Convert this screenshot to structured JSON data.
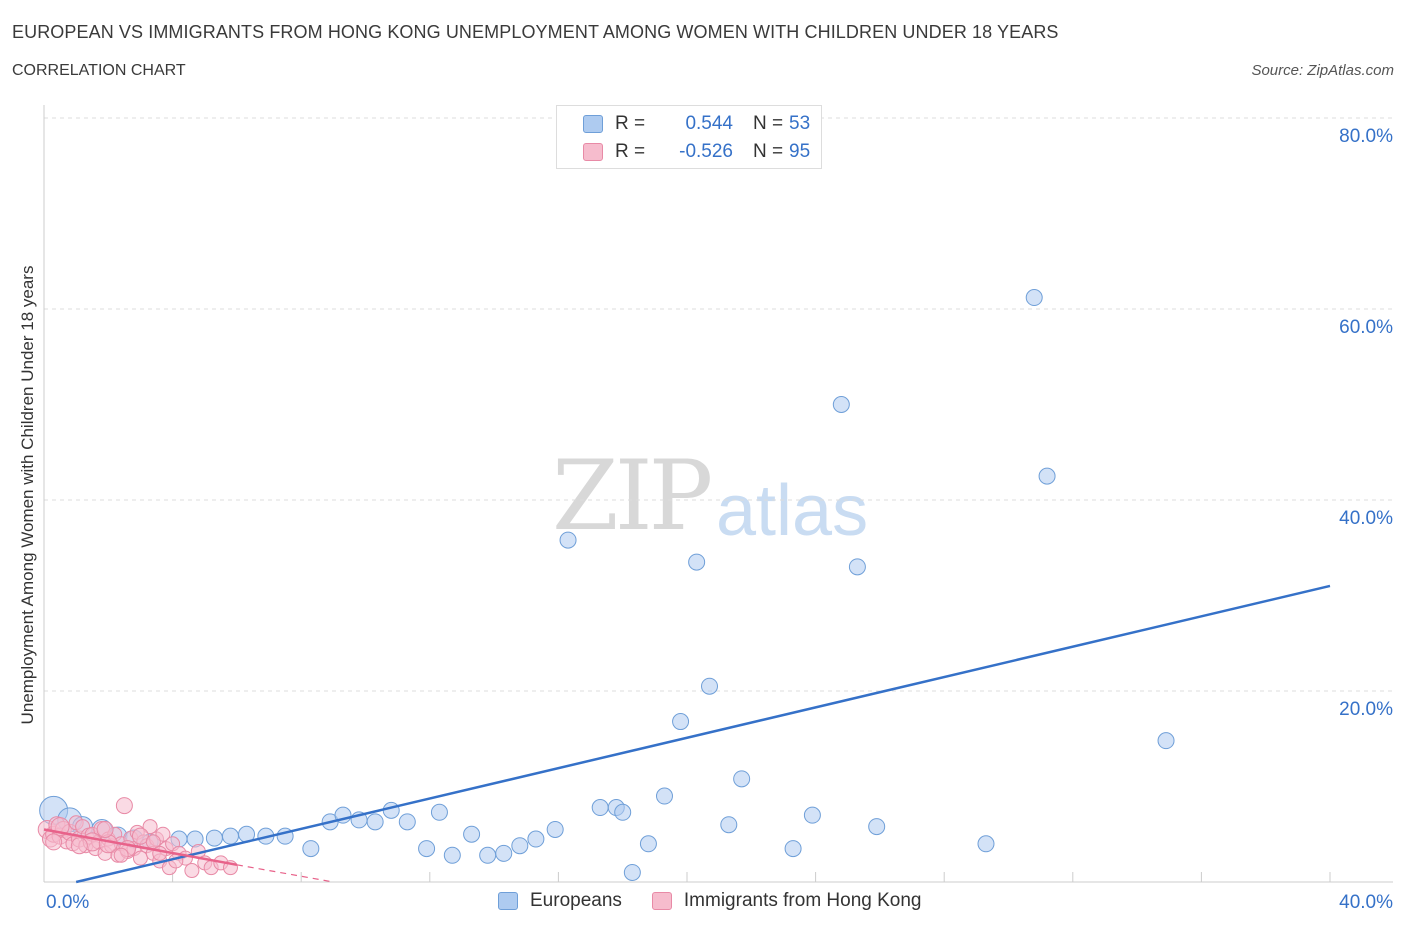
{
  "header": {
    "title": "EUROPEAN VS IMMIGRANTS FROM HONG KONG UNEMPLOYMENT AMONG WOMEN WITH CHILDREN UNDER 18 YEARS",
    "subtitle": "CORRELATION CHART",
    "source": "Source: ZipAtlas.com"
  },
  "watermark": {
    "zip": "ZIP",
    "atlas": "atlas"
  },
  "legend": {
    "rows": [
      {
        "r_label": "R =",
        "r_value": "0.544",
        "n_label": "N =",
        "n_value": "53",
        "color": "#aecbf0",
        "border": "#6f9fd8"
      },
      {
        "r_label": "R =",
        "r_value": "-0.526",
        "n_label": "N =",
        "n_value": "95",
        "color": "#f6bccd",
        "border": "#e88aa6"
      }
    ]
  },
  "bottom_legend": {
    "items": [
      {
        "label": "Europeans",
        "color": "#aecbf0",
        "border": "#6f9fd8"
      },
      {
        "label": "Immigrants from Hong Kong",
        "color": "#f6bccd",
        "border": "#e88aa6"
      }
    ]
  },
  "chart_data": {
    "type": "scatter",
    "title": "EUROPEAN VS IMMIGRANTS FROM HONG KONG UNEMPLOYMENT AMONG WOMEN WITH CHILDREN UNDER 18 YEARS",
    "xlabel": "",
    "ylabel": "Unemployment Among Women with Children Under 18 years",
    "xlim": [
      0,
      40
    ],
    "ylim": [
      0,
      80
    ],
    "x_tick_labels": [
      "0.0%",
      "40.0%"
    ],
    "y_tick_labels": [
      "20.0%",
      "40.0%",
      "60.0%",
      "80.0%"
    ],
    "y_ticks": [
      20,
      40,
      60,
      80
    ],
    "grid": true,
    "series": [
      {
        "name": "Europeans",
        "color": "#aecbf0",
        "stroke": "#6f9fd8",
        "trend": {
          "x": [
            1.0,
            40.0
          ],
          "y": [
            0.0,
            31.0
          ],
          "color": "#3571c8"
        },
        "points": [
          [
            0.3,
            7.5,
            14
          ],
          [
            0.8,
            6.5,
            12
          ],
          [
            1.2,
            5.8,
            10
          ],
          [
            1.8,
            5.5,
            10
          ],
          [
            2.3,
            4.8,
            9
          ],
          [
            2.8,
            4.5,
            9
          ],
          [
            3.3,
            4.2,
            8
          ],
          [
            4.2,
            4.5,
            8
          ],
          [
            4.7,
            4.5,
            8
          ],
          [
            5.3,
            4.6,
            8
          ],
          [
            5.8,
            4.8,
            8
          ],
          [
            6.3,
            5.0,
            8
          ],
          [
            6.9,
            4.8,
            8
          ],
          [
            7.5,
            4.8,
            8
          ],
          [
            8.3,
            3.5,
            8
          ],
          [
            8.9,
            6.3,
            8
          ],
          [
            9.3,
            7.0,
            8
          ],
          [
            9.8,
            6.5,
            8
          ],
          [
            10.3,
            6.3,
            8
          ],
          [
            10.8,
            7.5,
            8
          ],
          [
            11.3,
            6.3,
            8
          ],
          [
            11.9,
            3.5,
            8
          ],
          [
            12.3,
            7.3,
            8
          ],
          [
            12.7,
            2.8,
            8
          ],
          [
            13.3,
            5.0,
            8
          ],
          [
            13.8,
            2.8,
            8
          ],
          [
            14.3,
            3.0,
            8
          ],
          [
            14.8,
            3.8,
            8
          ],
          [
            15.3,
            4.5,
            8
          ],
          [
            15.9,
            5.5,
            8
          ],
          [
            16.3,
            35.8,
            8
          ],
          [
            17.3,
            7.8,
            8
          ],
          [
            17.8,
            7.8,
            8
          ],
          [
            18.0,
            7.3,
            8
          ],
          [
            18.3,
            1.0,
            8
          ],
          [
            18.8,
            4.0,
            8
          ],
          [
            19.3,
            9.0,
            8
          ],
          [
            19.8,
            16.8,
            8
          ],
          [
            20.3,
            33.5,
            8
          ],
          [
            20.7,
            20.5,
            8
          ],
          [
            21.3,
            6.0,
            8
          ],
          [
            21.7,
            10.8,
            8
          ],
          [
            23.3,
            3.5,
            8
          ],
          [
            23.9,
            7.0,
            8
          ],
          [
            24.8,
            50.0,
            8
          ],
          [
            25.3,
            33.0,
            8
          ],
          [
            25.9,
            5.8,
            8
          ],
          [
            29.3,
            4.0,
            8
          ],
          [
            30.8,
            61.2,
            8
          ],
          [
            31.2,
            42.5,
            8
          ],
          [
            34.9,
            14.8,
            8
          ]
        ]
      },
      {
        "name": "Immigrants from Hong Kong",
        "color": "#f6bccd",
        "stroke": "#e88aa6",
        "trend": {
          "x": [
            0.0,
            6.0
          ],
          "y": [
            5.5,
            1.8
          ],
          "color": "#e8628a",
          "dash_to": [
            9.0,
            0.0
          ]
        },
        "points": [
          [
            0.1,
            5.5,
            9
          ],
          [
            0.2,
            4.5,
            8
          ],
          [
            0.3,
            5.0,
            8
          ],
          [
            0.4,
            6.0,
            8
          ],
          [
            0.5,
            4.8,
            8
          ],
          [
            0.6,
            5.5,
            8
          ],
          [
            0.7,
            4.2,
            7
          ],
          [
            0.8,
            5.2,
            8
          ],
          [
            0.9,
            4.0,
            7
          ],
          [
            1.0,
            6.2,
            7
          ],
          [
            1.1,
            4.5,
            8
          ],
          [
            1.2,
            5.8,
            7
          ],
          [
            1.3,
            3.8,
            7
          ],
          [
            1.4,
            4.8,
            8
          ],
          [
            1.5,
            5.0,
            7
          ],
          [
            1.6,
            3.5,
            7
          ],
          [
            1.7,
            4.2,
            7
          ],
          [
            1.8,
            5.5,
            8
          ],
          [
            1.9,
            3.0,
            7
          ],
          [
            2.0,
            4.5,
            7
          ],
          [
            2.1,
            3.8,
            7
          ],
          [
            2.2,
            5.0,
            7
          ],
          [
            2.3,
            2.8,
            7
          ],
          [
            2.4,
            4.0,
            7
          ],
          [
            2.5,
            8.0,
            8
          ],
          [
            2.6,
            3.2,
            7
          ],
          [
            2.7,
            4.6,
            7
          ],
          [
            2.8,
            3.5,
            7
          ],
          [
            2.9,
            5.2,
            7
          ],
          [
            3.0,
            2.5,
            7
          ],
          [
            3.1,
            4.2,
            7
          ],
          [
            3.2,
            3.8,
            7
          ],
          [
            3.3,
            5.8,
            7
          ],
          [
            3.4,
            3.0,
            7
          ],
          [
            3.5,
            4.5,
            7
          ],
          [
            3.6,
            2.2,
            7
          ],
          [
            3.7,
            5.0,
            7
          ],
          [
            3.8,
            3.5,
            7
          ],
          [
            3.9,
            1.5,
            7
          ],
          [
            4.0,
            4.0,
            7
          ],
          [
            4.2,
            3.0,
            7
          ],
          [
            4.4,
            2.5,
            7
          ],
          [
            4.6,
            1.2,
            7
          ],
          [
            4.8,
            3.2,
            7
          ],
          [
            5.0,
            2.0,
            7
          ],
          [
            5.2,
            1.5,
            7
          ],
          [
            5.5,
            2.0,
            7
          ],
          [
            5.8,
            1.5,
            7
          ],
          [
            0.5,
            5.8,
            9
          ],
          [
            1.5,
            4.2,
            9
          ],
          [
            2.0,
            4.0,
            9
          ],
          [
            2.6,
            3.5,
            8
          ],
          [
            3.0,
            4.8,
            8
          ],
          [
            1.1,
            3.8,
            8
          ],
          [
            0.3,
            4.2,
            8
          ],
          [
            1.9,
            5.5,
            8
          ],
          [
            2.4,
            2.8,
            7
          ],
          [
            3.4,
            4.2,
            7
          ],
          [
            4.1,
            2.2,
            7
          ],
          [
            3.6,
            3.0,
            7
          ]
        ]
      }
    ]
  }
}
